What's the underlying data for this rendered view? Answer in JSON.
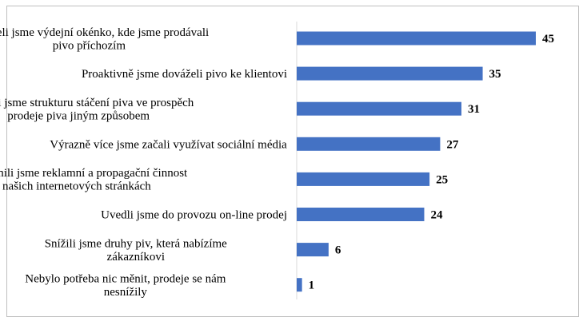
{
  "chart_data": {
    "type": "bar",
    "orientation": "horizontal",
    "categories": [
      [
        "Otevřeli jsme  výdejní okénko, kde jsme prodávali",
        "pivo příchozím"
      ],
      [
        "Proaktivně jsme dováželi pivo ke klientovi"
      ],
      [
        "Změnili jsme strukturu stáčení piva ve prospěch",
        "prodeje piva jiným způsobem"
      ],
      [
        "Výrazně více jsme začali využívat sociální média"
      ],
      [
        "Zintenzivnili jsme reklamní a propagační činnost",
        "na našich internetových stránkách"
      ],
      [
        "Uvedli jsme do provozu on-line prodej"
      ],
      [
        "Snížili jsme druhy piv, která nabízíme",
        "zákazníkovi"
      ],
      [
        "Nebylo potřeba nic měnit, prodeje se nám",
        "nesnížily"
      ]
    ],
    "values": [
      45,
      35,
      31,
      27,
      25,
      24,
      6,
      1
    ],
    "value_labels": [
      "45",
      "35",
      "31",
      "27",
      "25",
      "24",
      "6",
      "1"
    ],
    "xlim": [
      0,
      45
    ],
    "bar_color": "#4472c4",
    "axis_color": "#d9d9d9",
    "grid": false,
    "legend": "none"
  }
}
